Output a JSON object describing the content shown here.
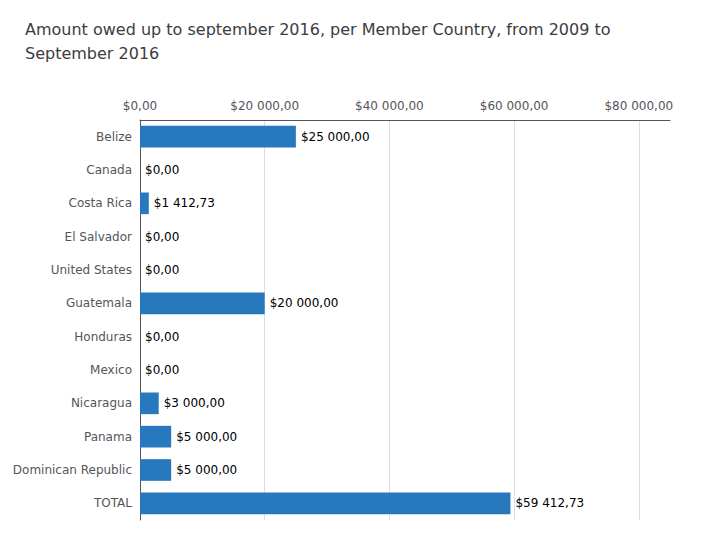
{
  "chart_data": {
    "type": "bar",
    "orientation": "horizontal",
    "title": "Amount owed up to september 2016, per Member Country, from 2009 to\nSeptember 2016",
    "categories": [
      "Belize",
      "Canada",
      "Costa Rica",
      "El Salvador",
      "United States",
      "Guatemala",
      "Honduras",
      "Mexico",
      "Nicaragua",
      "Panama",
      "Dominican Republic",
      "TOTAL"
    ],
    "values": [
      25000,
      0,
      1412.73,
      0,
      0,
      20000,
      0,
      0,
      3000,
      5000,
      5000,
      59412.73
    ],
    "value_labels": [
      "$25 000,00",
      "$0,00",
      "$1 412,73",
      "$0,00",
      "$0,00",
      "$20 000,00",
      "$0,00",
      "$0,00",
      "$3 000,00",
      "$5 000,00",
      "$5 000,00",
      "$59 412,73"
    ],
    "data_labels": true,
    "color": "#2878BE",
    "xlim": [
      0,
      85000
    ],
    "xticks": [
      {
        "value": 0,
        "label": "$0,00"
      },
      {
        "value": 20000,
        "label": "$20 000,00"
      },
      {
        "value": 40000,
        "label": "$40 000,00"
      },
      {
        "value": 60000,
        "label": "$60 000,00"
      },
      {
        "value": 80000,
        "label": "$80 000,00"
      }
    ],
    "grid": true
  }
}
